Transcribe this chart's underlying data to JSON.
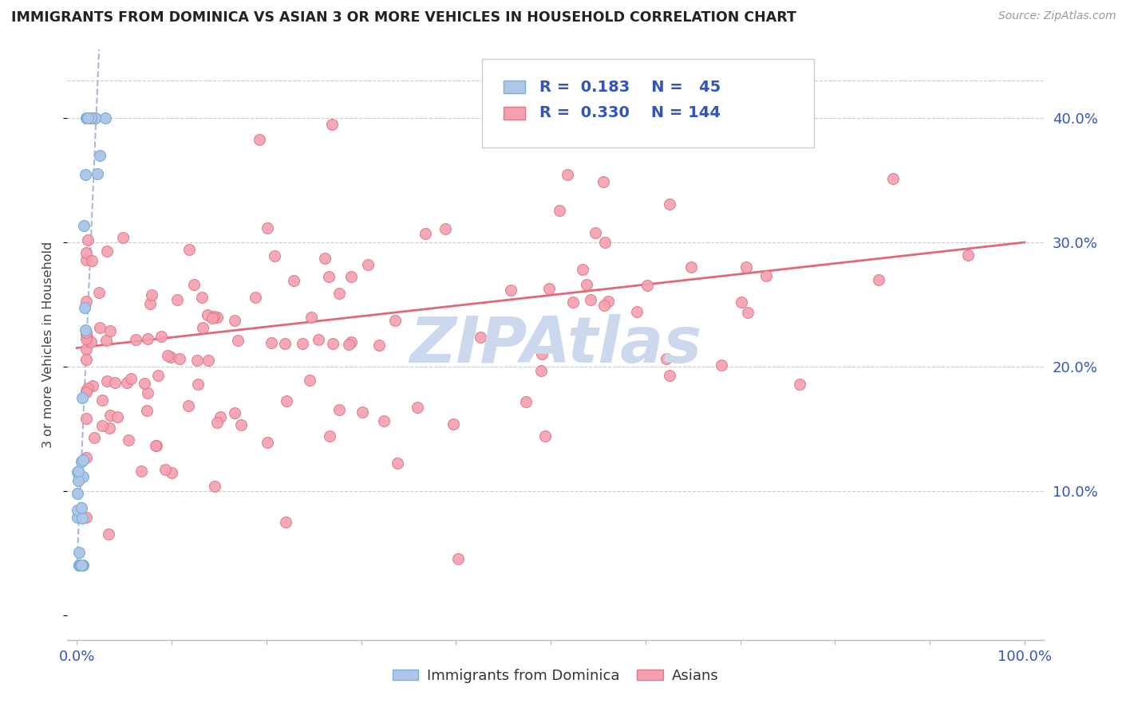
{
  "title": "IMMIGRANTS FROM DOMINICA VS ASIAN 3 OR MORE VEHICLES IN HOUSEHOLD CORRELATION CHART",
  "source": "Source: ZipAtlas.com",
  "ylabel": "3 or more Vehicles in Household",
  "dominica_color": "#aec6e8",
  "dominica_edge": "#7bafd4",
  "asian_color": "#f4a0b0",
  "asian_edge": "#e07888",
  "trendline_dominica_color": "#aab8d8",
  "trendline_asian_color": "#e06878",
  "watermark": "ZIPAtlas",
  "watermark_color": "#ccd8ee",
  "legend_label1": "Immigrants from Dominica",
  "legend_label2": "Asians",
  "tick_color": "#3355bb",
  "grid_color": "#cccccc",
  "title_color": "#222222",
  "source_color": "#999999"
}
